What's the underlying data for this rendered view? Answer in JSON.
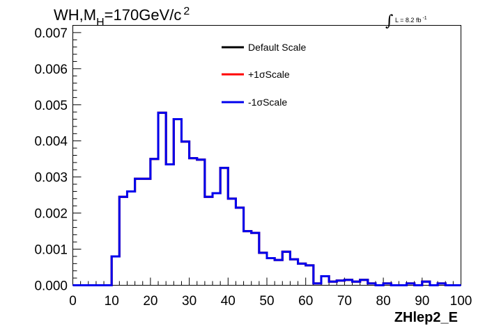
{
  "chart_data": {
    "type": "line",
    "style": "step-histogram",
    "title": {
      "main": "WH,M",
      "sub": "H",
      "rest": "=170GeV/c",
      "sup": "2"
    },
    "lumi": {
      "integral_symbol": "∫",
      "text": "L = 8.2 fb",
      "sup": "-1"
    },
    "xlabel": "ZHlep2_E",
    "ylabel": "",
    "xlim": [
      0,
      100
    ],
    "ylim": [
      0,
      0.0072
    ],
    "grid": false,
    "legend_position": "top-center",
    "x_ticks": [
      "0",
      "10",
      "20",
      "30",
      "40",
      "50",
      "60",
      "70",
      "80",
      "90",
      "100"
    ],
    "y_ticks": [
      "0.000",
      "0.001",
      "0.002",
      "0.003",
      "0.004",
      "0.005",
      "0.006",
      "0.007"
    ],
    "bin_edges": [
      0,
      2,
      4,
      6,
      8,
      10,
      12,
      14,
      16,
      18,
      20,
      22,
      24,
      26,
      28,
      30,
      32,
      34,
      36,
      38,
      40,
      42,
      44,
      46,
      48,
      50,
      52,
      54,
      56,
      58,
      60,
      62,
      64,
      66,
      68,
      70,
      72,
      74,
      76,
      78,
      80,
      82,
      84,
      86,
      88,
      90,
      92,
      94,
      96,
      98,
      100
    ],
    "series": [
      {
        "name": "Default Scale",
        "color": "#000000",
        "values": [
          0,
          0,
          0,
          0,
          0,
          0.0008,
          0.00245,
          0.0026,
          0.00295,
          0.00295,
          0.0035,
          0.00478,
          0.00335,
          0.0046,
          0.00398,
          0.00352,
          0.00348,
          0.00245,
          0.00255,
          0.00325,
          0.0024,
          0.00215,
          0.0015,
          0.00145,
          0.0009,
          0.00075,
          0.0007,
          0.00093,
          0.00072,
          0.0006,
          0.00055,
          5e-05,
          0.00025,
          0.0001,
          0.00013,
          0.00015,
          0.0001,
          0.00015,
          5e-05,
          0,
          5e-05,
          0,
          0,
          5e-05,
          0,
          0.0001,
          0,
          5e-05,
          0,
          0
        ]
      },
      {
        "name": "+1σScale",
        "color": "#ff0000",
        "values": [
          0,
          0,
          0,
          0,
          0,
          0.0008,
          0.00245,
          0.0026,
          0.00295,
          0.00295,
          0.0035,
          0.00478,
          0.00335,
          0.0046,
          0.00398,
          0.00352,
          0.00348,
          0.00245,
          0.00255,
          0.00325,
          0.0024,
          0.00215,
          0.0015,
          0.00145,
          0.0009,
          0.00075,
          0.0007,
          0.00093,
          0.00072,
          0.0006,
          0.00055,
          5e-05,
          0.00025,
          0.0001,
          0.00013,
          0.00015,
          0.0001,
          0.00015,
          5e-05,
          0,
          5e-05,
          0,
          0,
          5e-05,
          0,
          0.0001,
          0,
          5e-05,
          0,
          0
        ]
      },
      {
        "name": "-1σScale",
        "color": "#0000ee",
        "values": [
          0,
          0,
          0,
          0,
          0,
          0.0008,
          0.00245,
          0.0026,
          0.00295,
          0.00295,
          0.0035,
          0.00478,
          0.00335,
          0.0046,
          0.00398,
          0.00352,
          0.00348,
          0.00245,
          0.00255,
          0.00325,
          0.0024,
          0.00215,
          0.0015,
          0.00145,
          0.0009,
          0.00075,
          0.0007,
          0.00093,
          0.00072,
          0.0006,
          0.00055,
          5e-05,
          0.00025,
          0.0001,
          0.00013,
          0.00015,
          0.0001,
          0.00015,
          5e-05,
          0,
          5e-05,
          0,
          0,
          5e-05,
          0,
          0.0001,
          0,
          5e-05,
          0,
          0
        ]
      }
    ]
  }
}
